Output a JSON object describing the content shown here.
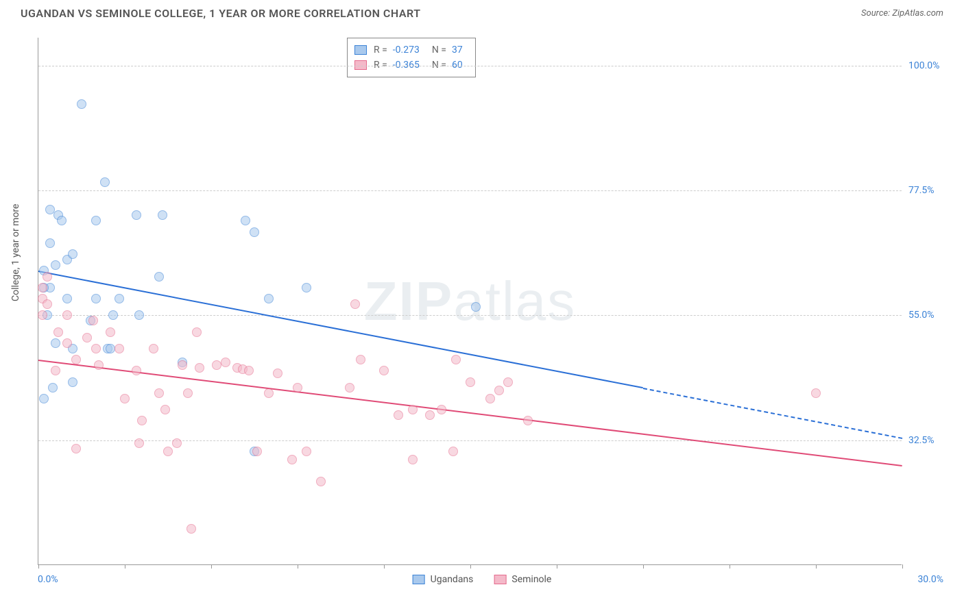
{
  "title": "UGANDAN VS SEMINOLE COLLEGE, 1 YEAR OR MORE CORRELATION CHART",
  "source": "Source: ZipAtlas.com",
  "watermark": {
    "bold": "ZIP",
    "light": "atlas"
  },
  "ylabel": "College, 1 year or more",
  "chart": {
    "type": "scatter",
    "background_color": "#ffffff",
    "grid_color": "#cccccc",
    "axis_color": "#999999",
    "tick_label_color": "#3b82d6",
    "xlim": [
      0,
      30
    ],
    "ylim": [
      10,
      105
    ],
    "xlim_labels": {
      "min": "0.0%",
      "max": "30.0%"
    },
    "ytick_values": [
      32.5,
      55.0,
      77.5,
      100.0
    ],
    "ytick_labels": [
      "32.5%",
      "55.0%",
      "77.5%",
      "100.0%"
    ],
    "xtick_values": [
      0,
      3,
      6,
      9,
      12,
      15,
      18,
      21,
      24,
      27,
      30
    ],
    "marker_radius": 7,
    "label_fontsize": 14,
    "title_fontsize": 16
  },
  "legend_top": {
    "rows": [
      {
        "swatch_fill": "#a9c9ed",
        "swatch_border": "#3b82d6",
        "r_label": "R =",
        "r_value": "-0.273",
        "n_label": "N =",
        "n_value": "37"
      },
      {
        "swatch_fill": "#f4b9c9",
        "swatch_border": "#e56a8c",
        "r_label": "R =",
        "r_value": "-0.365",
        "n_label": "N =",
        "n_value": "60"
      }
    ]
  },
  "legend_bottom": [
    {
      "label": "Ugandans",
      "swatch_fill": "#a9c9ed",
      "swatch_border": "#3b82d6"
    },
    {
      "label": "Seminole",
      "swatch_fill": "#f4b9c9",
      "swatch_border": "#e56a8c"
    }
  ],
  "series": [
    {
      "name": "Ugandans",
      "fill": "#a9c9ed",
      "stroke": "#3b82d6",
      "trend": {
        "start": [
          0,
          63
        ],
        "solid_end": [
          21,
          42
        ],
        "dash_end": [
          30,
          33
        ],
        "color": "#2a6fd6",
        "width": 2
      },
      "points": [
        [
          1.5,
          93
        ],
        [
          2.3,
          79
        ],
        [
          0.7,
          73
        ],
        [
          0.4,
          68
        ],
        [
          0.8,
          72
        ],
        [
          2.0,
          72
        ],
        [
          3.4,
          73
        ],
        [
          4.3,
          73
        ],
        [
          0.2,
          63
        ],
        [
          0.4,
          60
        ],
        [
          1.0,
          65
        ],
        [
          1.2,
          66
        ],
        [
          2.8,
          58
        ],
        [
          4.2,
          62
        ],
        [
          1.8,
          54
        ],
        [
          2.6,
          55
        ],
        [
          0.6,
          50
        ],
        [
          2.4,
          49
        ],
        [
          0.3,
          55
        ],
        [
          7.2,
          72
        ],
        [
          7.5,
          70
        ],
        [
          8.0,
          58
        ],
        [
          5.0,
          46.5
        ],
        [
          9.3,
          60
        ],
        [
          1.2,
          43
        ],
        [
          0.2,
          40
        ],
        [
          15.2,
          56.5
        ],
        [
          7.5,
          30.5
        ],
        [
          0.5,
          42
        ],
        [
          1.0,
          58
        ],
        [
          0.2,
          60
        ],
        [
          0.6,
          64
        ],
        [
          0.4,
          74
        ],
        [
          2.0,
          58
        ],
        [
          1.2,
          49
        ],
        [
          2.5,
          49
        ],
        [
          3.5,
          55
        ]
      ]
    },
    {
      "name": "Seminole",
      "fill": "#f4b9c9",
      "stroke": "#e56a8c",
      "trend": {
        "start": [
          0,
          47
        ],
        "solid_end": [
          30,
          28
        ],
        "dash_end": null,
        "color": "#e04a76",
        "width": 2
      },
      "points": [
        [
          0.15,
          58
        ],
        [
          0.15,
          55
        ],
        [
          0.15,
          60
        ],
        [
          0.3,
          57
        ],
        [
          0.3,
          62
        ],
        [
          0.6,
          45
        ],
        [
          0.7,
          52
        ],
        [
          1.0,
          50
        ],
        [
          1.0,
          55
        ],
        [
          1.3,
          47
        ],
        [
          1.7,
          51
        ],
        [
          1.9,
          54
        ],
        [
          1.3,
          31
        ],
        [
          2.0,
          49
        ],
        [
          2.1,
          46
        ],
        [
          2.5,
          52
        ],
        [
          2.8,
          49
        ],
        [
          3.0,
          40
        ],
        [
          3.4,
          45
        ],
        [
          3.5,
          32
        ],
        [
          3.6,
          36
        ],
        [
          4.0,
          49
        ],
        [
          4.2,
          41
        ],
        [
          4.4,
          38
        ],
        [
          4.5,
          30.5
        ],
        [
          4.8,
          32
        ],
        [
          5.0,
          46
        ],
        [
          5.2,
          41
        ],
        [
          5.3,
          16.5
        ],
        [
          5.5,
          52
        ],
        [
          5.6,
          45.5
        ],
        [
          6.2,
          46
        ],
        [
          6.5,
          46.5
        ],
        [
          6.9,
          45.5
        ],
        [
          7.1,
          45.3
        ],
        [
          7.3,
          45
        ],
        [
          7.6,
          30.5
        ],
        [
          8.0,
          41
        ],
        [
          8.3,
          44.5
        ],
        [
          8.8,
          29
        ],
        [
          9.3,
          30.5
        ],
        [
          9.0,
          42
        ],
        [
          9.8,
          25
        ],
        [
          10.8,
          42
        ],
        [
          11.0,
          57
        ],
        [
          11.2,
          47
        ],
        [
          12.0,
          45
        ],
        [
          12.5,
          37
        ],
        [
          13.0,
          38
        ],
        [
          13.0,
          29
        ],
        [
          13.6,
          37
        ],
        [
          14.0,
          38
        ],
        [
          14.4,
          30.5
        ],
        [
          14.5,
          47
        ],
        [
          15.0,
          43
        ],
        [
          15.7,
          40
        ],
        [
          16.0,
          41.5
        ],
        [
          16.3,
          43
        ],
        [
          17.0,
          36
        ],
        [
          27.0,
          41
        ]
      ]
    }
  ]
}
